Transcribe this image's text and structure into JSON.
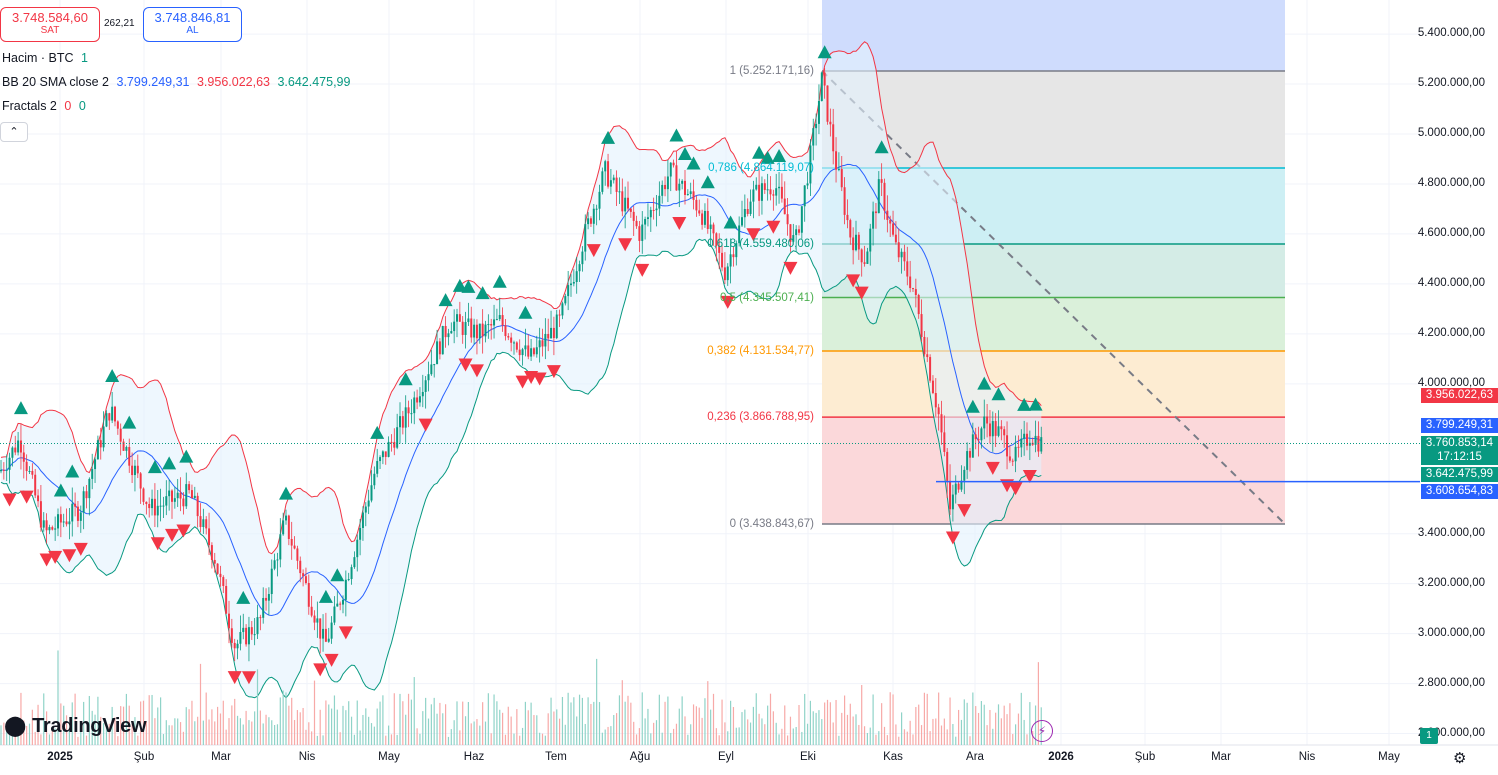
{
  "order_panel": {
    "sell_price": "3.748.584,60",
    "sell_label": "SAT",
    "spread": "262,21",
    "buy_price": "3.748.846,81",
    "buy_label": "AL"
  },
  "legend": {
    "volume_name": "Hacim · BTC",
    "volume_value": "1",
    "bb_name": "BB 20 SMA close 2",
    "bb_basis": "3.799.249,31",
    "bb_upper": "3.956.022,63",
    "bb_lower": "3.642.475,99",
    "fractals_name": "Fractals 2",
    "fractals_v1": "0",
    "fractals_v2": "0",
    "collapse_icon": "chevron-up-icon"
  },
  "price_axis": {
    "ticks": [
      "5.400.000,00",
      "5.200.000,00",
      "5.000.000,00",
      "4.800.000,00",
      "4.600.000,00",
      "4.400.000,00",
      "4.200.000,00",
      "4.000.000,00",
      "3.400.000,00",
      "3.200.000,00",
      "3.000.000,00",
      "2.800.000,00",
      "2.600.000,00"
    ],
    "labels": [
      {
        "text": "3.956.022,63",
        "color": "#f23645"
      },
      {
        "text": "3.799.249,31",
        "color": "#2962ff"
      },
      {
        "text": "3.760.853,14",
        "color": "#089981"
      },
      {
        "text": "17:12:15",
        "color": "#089981"
      },
      {
        "text": "3.642.475,99",
        "color": "#089981"
      },
      {
        "text": "3.608.654,83",
        "color": "#2962ff"
      }
    ]
  },
  "time_axis": {
    "ticks": [
      "2025",
      "Şub",
      "Mar",
      "Nis",
      "May",
      "Haz",
      "Tem",
      "Ağu",
      "Eyl",
      "Eki",
      "Kas",
      "Ara",
      "2026",
      "Şub",
      "Mar",
      "Nis",
      "May"
    ]
  },
  "fibonacci": {
    "levels": [
      {
        "label": "1 (5.252.171,16)",
        "ratio": 1,
        "price": 5252171.16,
        "line_color": "#787b86",
        "fill": "#e6e6e6",
        "text_color": "#787b86"
      },
      {
        "label": "0,786 (4.864.119,07)",
        "ratio": 0.786,
        "price": 4864119.07,
        "line_color": "#00bcd4",
        "fill": "#cdeff4",
        "text_color": "#00bcd4"
      },
      {
        "label": "0,618 (4.559.480,06)",
        "ratio": 0.618,
        "price": 4559480.06,
        "line_color": "#089981",
        "fill": "#d4ece6",
        "text_color": "#089981"
      },
      {
        "label": "0,5 (4.345.507,41)",
        "ratio": 0.5,
        "price": 4345507.41,
        "line_color": "#4caf50",
        "fill": "#daf0da",
        "text_color": "#4caf50"
      },
      {
        "label": "0,382 (4.131.534,77)",
        "ratio": 0.382,
        "price": 4131534.77,
        "line_color": "#ff9800",
        "fill": "#fdecd2",
        "text_color": "#ff9800"
      },
      {
        "label": "0,236 (3.866.788,95)",
        "ratio": 0.236,
        "price": 3866788.95,
        "line_color": "#f23645",
        "fill": "#fbd8da",
        "text_color": "#f23645"
      },
      {
        "label": "0 (3.438.843,67)",
        "ratio": 0,
        "price": 3438843.67,
        "line_color": "#787b86",
        "fill": "",
        "text_color": "#787b86"
      }
    ],
    "top_fill": "#cfdcfd"
  },
  "chart_data": {
    "type": "candlestick",
    "symbol_unit": "BTC",
    "y_range": [
      2600000,
      5400000
    ],
    "current_price": 3760853.14,
    "support_line_price": 3608654.83,
    "bb_upper_last": 3956022.63,
    "bb_basis_last": 3799249.31,
    "bb_lower_last": 3642475.99
  },
  "branding": {
    "logo_text": "TradingView",
    "logo_icon": "tradingview-logo-icon",
    "badge": "1",
    "settings_icon": "gear-icon",
    "flash_icon": "lightning-icon"
  },
  "colors": {
    "up": "#089981",
    "down": "#f23645",
    "bb_basis": "#2962ff",
    "bb_upper": "#f23645",
    "bb_lower": "#089981",
    "band_fill": "#e3f2fd"
  }
}
